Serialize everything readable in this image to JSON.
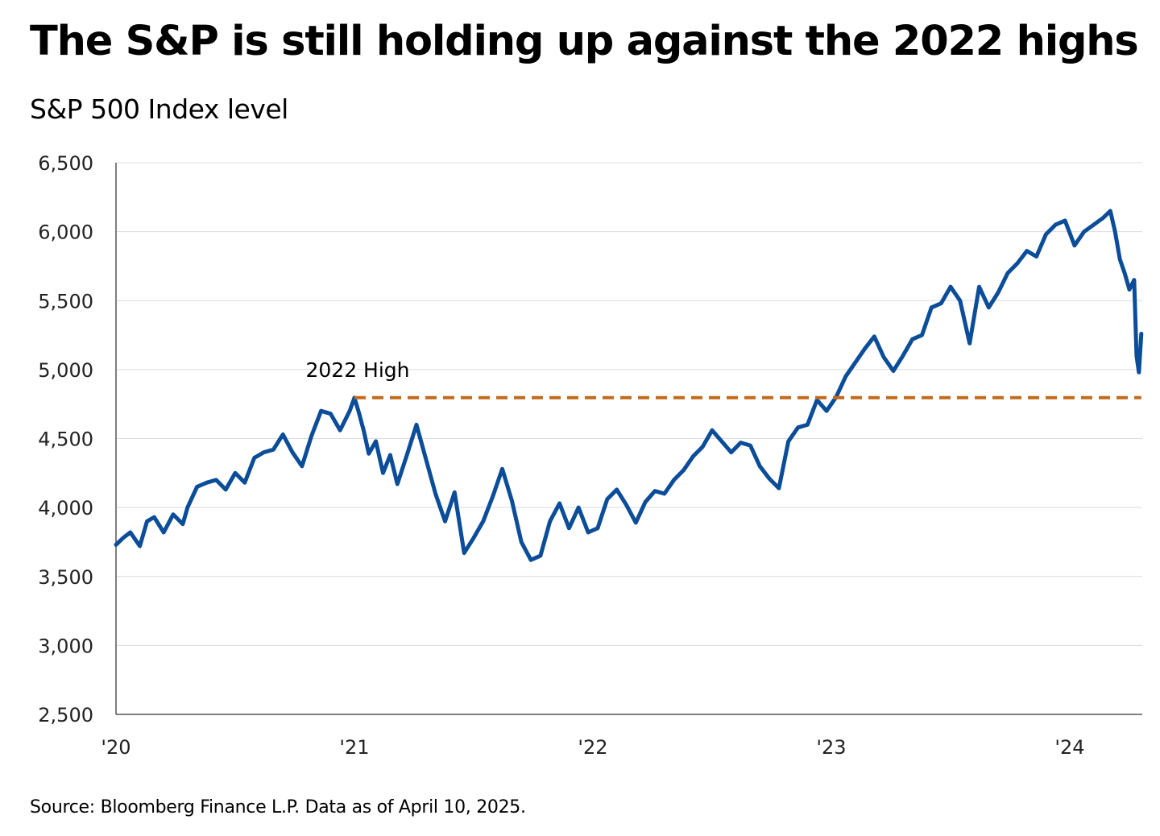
{
  "chart_data": {
    "type": "line",
    "title": "The S&P is still holding up against the 2022 highs",
    "subtitle": "S&P 500 Index level",
    "source": "Source: Bloomberg Finance L.P. Data as of April 10, 2025.",
    "xlabel": "",
    "ylabel": "S&P 500 Index level",
    "ylim": [
      2500,
      6500
    ],
    "yticks": [
      2500,
      3000,
      3500,
      4000,
      4500,
      5000,
      5500,
      6000,
      6500
    ],
    "ytick_labels": [
      "2,500",
      "3,000",
      "3,500",
      "4,000",
      "4,500",
      "5,000",
      "5,500",
      "6,000",
      "6,500"
    ],
    "xlim": [
      0,
      4.3
    ],
    "xticks": [
      0,
      1,
      2,
      3,
      4
    ],
    "xtick_labels": [
      "'20",
      "'21",
      "'22",
      "'23",
      "'24"
    ],
    "grid": "horizontal",
    "series": [
      {
        "name": "S&P 500 Index level",
        "color": "#0b4d99",
        "x": [
          0,
          0.03,
          0.06,
          0.1,
          0.13,
          0.16,
          0.2,
          0.24,
          0.28,
          0.3,
          0.34,
          0.38,
          0.42,
          0.46,
          0.5,
          0.54,
          0.58,
          0.62,
          0.66,
          0.7,
          0.74,
          0.78,
          0.82,
          0.86,
          0.9,
          0.94,
          0.98,
          1.0,
          1.02,
          1.04,
          1.06,
          1.09,
          1.12,
          1.15,
          1.18,
          1.22,
          1.26,
          1.3,
          1.34,
          1.38,
          1.42,
          1.46,
          1.5,
          1.54,
          1.58,
          1.62,
          1.66,
          1.7,
          1.74,
          1.78,
          1.82,
          1.86,
          1.9,
          1.94,
          1.98,
          2.02,
          2.06,
          2.1,
          2.14,
          2.18,
          2.22,
          2.26,
          2.3,
          2.34,
          2.38,
          2.42,
          2.46,
          2.5,
          2.54,
          2.58,
          2.62,
          2.66,
          2.7,
          2.74,
          2.78,
          2.82,
          2.86,
          2.9,
          2.94,
          2.98,
          3.02,
          3.06,
          3.1,
          3.14,
          3.18,
          3.22,
          3.26,
          3.3,
          3.34,
          3.38,
          3.42,
          3.46,
          3.5,
          3.54,
          3.58,
          3.62,
          3.66,
          3.7,
          3.74,
          3.78,
          3.82,
          3.86,
          3.9,
          3.94,
          3.98,
          4.02,
          4.06,
          4.1,
          4.14,
          4.17,
          4.19,
          4.21,
          4.23,
          4.25,
          4.27,
          4.28,
          4.29,
          4.3
        ],
        "values": [
          3730,
          3780,
          3820,
          3720,
          3900,
          3930,
          3820,
          3950,
          3880,
          4000,
          4150,
          4180,
          4200,
          4130,
          4250,
          4180,
          4360,
          4400,
          4420,
          4530,
          4400,
          4300,
          4520,
          4700,
          4680,
          4560,
          4700,
          4796,
          4680,
          4550,
          4390,
          4480,
          4250,
          4380,
          4170,
          4380,
          4600,
          4350,
          4100,
          3900,
          4110,
          3670,
          3780,
          3900,
          4080,
          4280,
          4050,
          3750,
          3620,
          3650,
          3900,
          4030,
          3850,
          4000,
          3820,
          3850,
          4060,
          4130,
          4020,
          3890,
          4040,
          4120,
          4100,
          4200,
          4270,
          4370,
          4440,
          4560,
          4480,
          4400,
          4470,
          4450,
          4300,
          4210,
          4140,
          4480,
          4580,
          4600,
          4780,
          4700,
          4800,
          4950,
          5050,
          5150,
          5240,
          5090,
          4990,
          5100,
          5220,
          5250,
          5450,
          5480,
          5600,
          5500,
          5190,
          5600,
          5450,
          5560,
          5700,
          5770,
          5860,
          5820,
          5980,
          6050,
          6080,
          5900,
          6000,
          6050,
          6100,
          6150,
          6000,
          5800,
          5700,
          5580,
          5650,
          5100,
          4980,
          5260
        ]
      },
      {
        "name": "2022 High",
        "color": "#c26a1b",
        "style": "dashed",
        "x": [
          1.0,
          4.3
        ],
        "values": [
          4796,
          4796
        ]
      }
    ],
    "annotations": [
      {
        "text": "2022 High",
        "x": 1.0,
        "y": 4796
      }
    ],
    "legend": "none"
  }
}
